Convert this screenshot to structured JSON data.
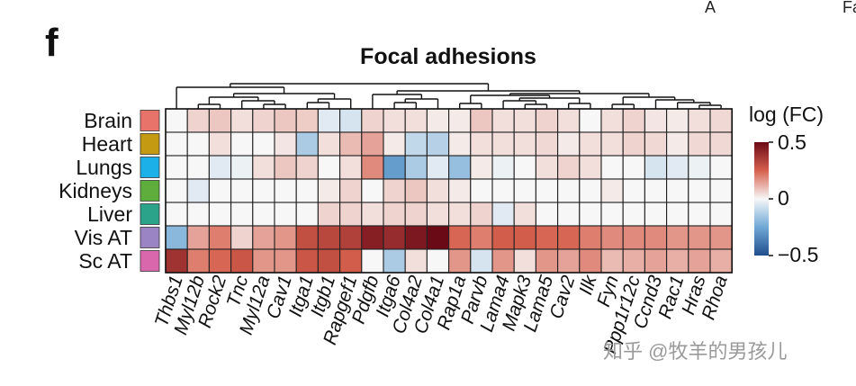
{
  "panel_letter": "f",
  "edge_text": [
    "A",
    "Fa"
  ],
  "watermark": "知乎 @牧羊的男孩儿",
  "colors": {
    "low": "#2c5fa0",
    "mid": "#f7f7f7",
    "high": "#6b0a17"
  },
  "chart_data": {
    "type": "heatmap",
    "title": "Focal adhesions",
    "rows": [
      {
        "name": "Brain",
        "color": "#e8736b"
      },
      {
        "name": "Heart",
        "color": "#c49a13"
      },
      {
        "name": "Lungs",
        "color": "#1bb0e8"
      },
      {
        "name": "Kidneys",
        "color": "#5fae3d"
      },
      {
        "name": "Liver",
        "color": "#2aa38a"
      },
      {
        "name": "Vis AT",
        "color": "#9a84c4"
      },
      {
        "name": "Sc AT",
        "color": "#d867ac"
      }
    ],
    "columns": [
      "Thbs1",
      "Myl12b",
      "Rock2",
      "Tnc",
      "Myl12a",
      "Cav1",
      "Itga1",
      "Itgb1",
      "Rapgef1",
      "Pdgfb",
      "Itga6",
      "Col4a2",
      "Col4a1",
      "Rap1a",
      "Parvb",
      "Lama4",
      "Mapk3",
      "Lama5",
      "Cav2",
      "Ilk",
      "Fyn",
      "Ppp1r12c",
      "Ccnd3",
      "Rac1",
      "Hras",
      "Rhoa"
    ],
    "values": [
      [
        0.0,
        0.06,
        0.08,
        0.04,
        0.06,
        0.08,
        0.07,
        -0.04,
        -0.06,
        0.06,
        0.04,
        0.04,
        0.02,
        0.02,
        0.08,
        0.04,
        0.04,
        0.06,
        0.04,
        0.0,
        0.04,
        0.06,
        0.03,
        0.02,
        0.04,
        0.05
      ],
      [
        0.0,
        0.0,
        0.04,
        0.0,
        0.0,
        0.03,
        -0.14,
        0.04,
        0.1,
        0.14,
        0.02,
        -0.1,
        -0.12,
        0.02,
        0.04,
        0.04,
        0.04,
        0.05,
        0.02,
        0.04,
        0.04,
        0.06,
        0.05,
        0.02,
        0.05,
        0.05
      ],
      [
        0.0,
        0.0,
        -0.04,
        -0.02,
        0.04,
        0.08,
        0.06,
        0.0,
        0.04,
        0.18,
        -0.28,
        -0.14,
        -0.04,
        -0.18,
        0.02,
        -0.02,
        0.0,
        0.04,
        0.06,
        0.04,
        0.0,
        0.0,
        -0.06,
        -0.04,
        -0.02,
        0.0
      ],
      [
        0.0,
        -0.04,
        0.0,
        0.0,
        0.0,
        0.0,
        0.0,
        0.02,
        0.06,
        0.0,
        0.06,
        0.08,
        0.04,
        0.02,
        0.0,
        0.0,
        0.0,
        0.0,
        0.0,
        0.0,
        0.02,
        0.0,
        0.0,
        0.0,
        0.0,
        0.0
      ],
      [
        0.0,
        0.0,
        0.0,
        0.0,
        0.0,
        0.0,
        0.0,
        0.06,
        0.06,
        0.04,
        0.06,
        0.06,
        0.04,
        0.04,
        0.06,
        -0.04,
        0.04,
        0.0,
        0.0,
        0.0,
        0.0,
        0.0,
        0.0,
        0.0,
        0.0,
        0.0
      ],
      [
        -0.2,
        0.14,
        0.2,
        0.06,
        0.14,
        0.16,
        0.3,
        0.32,
        0.34,
        0.44,
        0.4,
        0.46,
        0.56,
        0.24,
        0.2,
        0.26,
        0.26,
        0.24,
        0.24,
        0.2,
        0.18,
        0.18,
        0.18,
        0.16,
        0.16,
        0.16
      ],
      [
        0.38,
        0.2,
        0.24,
        0.28,
        0.16,
        0.16,
        0.28,
        0.3,
        0.26,
        0.0,
        -0.14,
        0.04,
        0.0,
        0.16,
        -0.06,
        0.16,
        0.04,
        0.16,
        0.14,
        0.18,
        0.1,
        0.12,
        0.14,
        0.12,
        0.14,
        0.12
      ]
    ],
    "legend": {
      "title": "log (FC)",
      "range": [
        -0.5,
        0.5
      ],
      "ticks": [
        "0.5",
        "0",
        "−0.5"
      ],
      "placement": "right"
    }
  }
}
